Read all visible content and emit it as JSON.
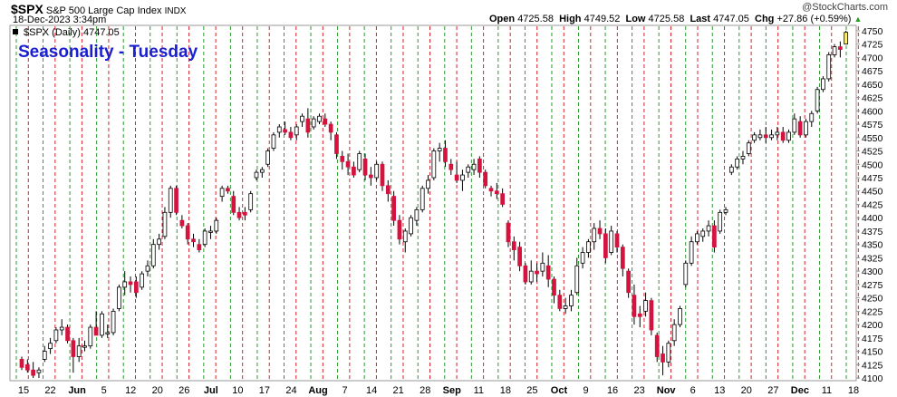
{
  "header": {
    "symbol": "$SPX",
    "name": "S&P 500 Large Cap Index",
    "exchange": "INDX",
    "date": "18-Dec-2023 3:34pm",
    "open_label": "Open",
    "open": "4725.58",
    "high_label": "High",
    "high": "4749.52",
    "low_label": "Low",
    "low": "4725.58",
    "last_label": "Last",
    "last": "4747.05",
    "chg_label": "Chg",
    "chg": "+27.86 (+0.59%)",
    "watermark": "@StockCharts.com",
    "legend": "$SPX (Daily) 4747.05"
  },
  "colors": {
    "up": "#ffffff",
    "down": "#d5133f",
    "title": "#1a1fcf",
    "tuesday_line": "#d6232a",
    "monday_line": "#2a9b2a"
  },
  "chart_data": {
    "type": "candlestick",
    "title": "Seasonality - Tuesday",
    "ylim": [
      4095,
      4760
    ],
    "yticks": [
      4100,
      4125,
      4150,
      4175,
      4200,
      4225,
      4250,
      4275,
      4300,
      4325,
      4350,
      4375,
      4400,
      4425,
      4450,
      4475,
      4500,
      4525,
      4550,
      4575,
      4600,
      4625,
      4650,
      4675,
      4700,
      4725,
      4750
    ],
    "xticks": [
      "15",
      "22",
      "Jun",
      "5",
      "12",
      "20",
      "26",
      "Jul",
      "10",
      "17",
      "24",
      "Aug",
      "7",
      "14",
      "21",
      "28",
      "Sep",
      "11",
      "18",
      "25",
      "Oct",
      "9",
      "16",
      "23",
      "Nov",
      "6",
      "13",
      "20",
      "27",
      "Dec",
      "11",
      "18"
    ],
    "grid": "vertical dashed lines: red on Tuesdays, green on Mondays",
    "candles_ohlc": [
      [
        4135,
        4140,
        4115,
        4120
      ],
      [
        4125,
        4135,
        4110,
        4115
      ],
      [
        4115,
        4130,
        4100,
        4105
      ],
      [
        4110,
        4120,
        4100,
        4115
      ],
      [
        4135,
        4160,
        4130,
        4150
      ],
      [
        4155,
        4175,
        4145,
        4165
      ],
      [
        4170,
        4195,
        4165,
        4190
      ],
      [
        4190,
        4210,
        4180,
        4195
      ],
      [
        4195,
        4200,
        4165,
        4170
      ],
      [
        4170,
        4175,
        4110,
        4140
      ],
      [
        4140,
        4175,
        4130,
        4160
      ],
      [
        4160,
        4170,
        4150,
        4160
      ],
      [
        4160,
        4200,
        4155,
        4195
      ],
      [
        4195,
        4225,
        4185,
        4180
      ],
      [
        4180,
        4225,
        4175,
        4220
      ],
      [
        4185,
        4200,
        4175,
        4185
      ],
      [
        4185,
        4230,
        4180,
        4225
      ],
      [
        4230,
        4275,
        4225,
        4270
      ],
      [
        4270,
        4300,
        4255,
        4280
      ],
      [
        4280,
        4290,
        4260,
        4275
      ],
      [
        4280,
        4290,
        4250,
        4260
      ],
      [
        4270,
        4300,
        4265,
        4295
      ],
      [
        4300,
        4320,
        4290,
        4310
      ],
      [
        4310,
        4360,
        4305,
        4350
      ],
      [
        4350,
        4370,
        4340,
        4360
      ],
      [
        4365,
        4420,
        4360,
        4410
      ],
      [
        4410,
        4460,
        4400,
        4455
      ],
      [
        4455,
        4460,
        4405,
        4410
      ],
      [
        4395,
        4405,
        4380,
        4385
      ],
      [
        4385,
        4390,
        4350,
        4360
      ],
      [
        4360,
        4370,
        4345,
        4355
      ],
      [
        4350,
        4360,
        4335,
        4340
      ],
      [
        4350,
        4380,
        4345,
        4375
      ],
      [
        4375,
        4385,
        4360,
        4375
      ],
      [
        4375,
        4400,
        4370,
        4395
      ],
      [
        4440,
        4460,
        4430,
        4455
      ],
      [
        4455,
        4460,
        4445,
        4450
      ],
      [
        4440,
        4450,
        4405,
        4410
      ],
      [
        4410,
        4420,
        4395,
        4400
      ],
      [
        4410,
        4420,
        4395,
        4405
      ],
      [
        4415,
        4450,
        4410,
        4445
      ],
      [
        4475,
        4490,
        4470,
        4485
      ],
      [
        4485,
        4495,
        4475,
        4490
      ],
      [
        4500,
        4530,
        4495,
        4525
      ],
      [
        4530,
        4560,
        4525,
        4555
      ],
      [
        4560,
        4575,
        4550,
        4570
      ],
      [
        4565,
        4580,
        4555,
        4560
      ],
      [
        4560,
        4570,
        4545,
        4550
      ],
      [
        4555,
        4575,
        4545,
        4570
      ],
      [
        4580,
        4595,
        4570,
        4590
      ],
      [
        4585,
        4605,
        4550,
        4560
      ],
      [
        4570,
        4590,
        4565,
        4585
      ],
      [
        4580,
        4595,
        4575,
        4590
      ],
      [
        4585,
        4595,
        4570,
        4575
      ],
      [
        4575,
        4580,
        4545,
        4560
      ],
      [
        4555,
        4560,
        4510,
        4520
      ],
      [
        4515,
        4525,
        4490,
        4505
      ],
      [
        4505,
        4520,
        4480,
        4495
      ],
      [
        4495,
        4505,
        4475,
        4480
      ],
      [
        4490,
        4525,
        4485,
        4520
      ],
      [
        4510,
        4520,
        4470,
        4480
      ],
      [
        4480,
        4495,
        4460,
        4475
      ],
      [
        4475,
        4505,
        4470,
        4500
      ],
      [
        4500,
        4505,
        4450,
        4460
      ],
      [
        4460,
        4470,
        4430,
        4445
      ],
      [
        4440,
        4450,
        4385,
        4395
      ],
      [
        4395,
        4405,
        4350,
        4360
      ],
      [
        4355,
        4380,
        4335,
        4375
      ],
      [
        4370,
        4405,
        4365,
        4400
      ],
      [
        4395,
        4420,
        4385,
        4415
      ],
      [
        4415,
        4460,
        4410,
        4455
      ],
      [
        4455,
        4480,
        4445,
        4470
      ],
      [
        4475,
        4530,
        4470,
        4525
      ],
      [
        4525,
        4540,
        4505,
        4530
      ],
      [
        4530,
        4545,
        4495,
        4505
      ],
      [
        4500,
        4510,
        4480,
        4490
      ],
      [
        4480,
        4505,
        4465,
        4470
      ],
      [
        4470,
        4490,
        4450,
        4480
      ],
      [
        4485,
        4500,
        4475,
        4495
      ],
      [
        4490,
        4510,
        4480,
        4500
      ],
      [
        4510,
        4515,
        4475,
        4485
      ],
      [
        4485,
        4490,
        4455,
        4460
      ],
      [
        4455,
        4460,
        4440,
        4450
      ],
      [
        4450,
        4465,
        4435,
        4445
      ],
      [
        4445,
        4455,
        4420,
        4425
      ],
      [
        4390,
        4395,
        4345,
        4355
      ],
      [
        4355,
        4365,
        4320,
        4340
      ],
      [
        4345,
        4355,
        4300,
        4310
      ],
      [
        4310,
        4315,
        4275,
        4280
      ],
      [
        4280,
        4320,
        4275,
        4300
      ],
      [
        4300,
        4315,
        4280,
        4295
      ],
      [
        4300,
        4335,
        4290,
        4315
      ],
      [
        4310,
        4330,
        4270,
        4285
      ],
      [
        4285,
        4290,
        4240,
        4255
      ],
      [
        4255,
        4265,
        4225,
        4230
      ],
      [
        4230,
        4250,
        4220,
        4235
      ],
      [
        4235,
        4265,
        4225,
        4255
      ],
      [
        4260,
        4325,
        4255,
        4310
      ],
      [
        4315,
        4345,
        4305,
        4335
      ],
      [
        4335,
        4360,
        4325,
        4355
      ],
      [
        4355,
        4390,
        4340,
        4380
      ],
      [
        4380,
        4395,
        4360,
        4370
      ],
      [
        4370,
        4380,
        4315,
        4325
      ],
      [
        4335,
        4385,
        4330,
        4375
      ],
      [
        4370,
        4375,
        4335,
        4345
      ],
      [
        4345,
        4350,
        4290,
        4305
      ],
      [
        4300,
        4305,
        4250,
        4260
      ],
      [
        4255,
        4275,
        4200,
        4215
      ],
      [
        4220,
        4235,
        4195,
        4215
      ],
      [
        4225,
        4260,
        4215,
        4245
      ],
      [
        4245,
        4250,
        4180,
        4190
      ],
      [
        4180,
        4185,
        4130,
        4140
      ],
      [
        4145,
        4160,
        4105,
        4130
      ],
      [
        4130,
        4170,
        4120,
        4165
      ],
      [
        4170,
        4210,
        4160,
        4200
      ],
      [
        4200,
        4235,
        4195,
        4230
      ],
      [
        4275,
        4320,
        4270,
        4315
      ],
      [
        4315,
        4365,
        4310,
        4355
      ],
      [
        4355,
        4375,
        4350,
        4370
      ],
      [
        4365,
        4380,
        4355,
        4375
      ],
      [
        4375,
        4395,
        4365,
        4385
      ],
      [
        4385,
        4395,
        4335,
        4345
      ],
      [
        4375,
        4415,
        4370,
        4410
      ],
      [
        4410,
        4420,
        4405,
        4415
      ],
      [
        4485,
        4500,
        4480,
        4495
      ],
      [
        4495,
        4515,
        4490,
        4510
      ],
      [
        4510,
        4525,
        4500,
        4515
      ],
      [
        4520,
        4545,
        4515,
        4540
      ],
      [
        4545,
        4560,
        4540,
        4555
      ],
      [
        4550,
        4565,
        4545,
        4555
      ],
      [
        4555,
        4570,
        4540,
        4550
      ],
      [
        4550,
        4565,
        4545,
        4555
      ],
      [
        4555,
        4570,
        4545,
        4560
      ],
      [
        4560,
        4570,
        4540,
        4545
      ],
      [
        4545,
        4565,
        4540,
        4560
      ],
      [
        4560,
        4595,
        4555,
        4585
      ],
      [
        4580,
        4590,
        4550,
        4555
      ],
      [
        4555,
        4585,
        4550,
        4580
      ],
      [
        4580,
        4600,
        4570,
        4595
      ],
      [
        4600,
        4645,
        4595,
        4640
      ],
      [
        4640,
        4665,
        4635,
        4660
      ],
      [
        4660,
        4710,
        4655,
        4705
      ],
      [
        4705,
        4725,
        4700,
        4720
      ],
      [
        4720,
        4730,
        4700,
        4715
      ],
      [
        4725,
        4750,
        4725,
        4747
      ]
    ]
  }
}
